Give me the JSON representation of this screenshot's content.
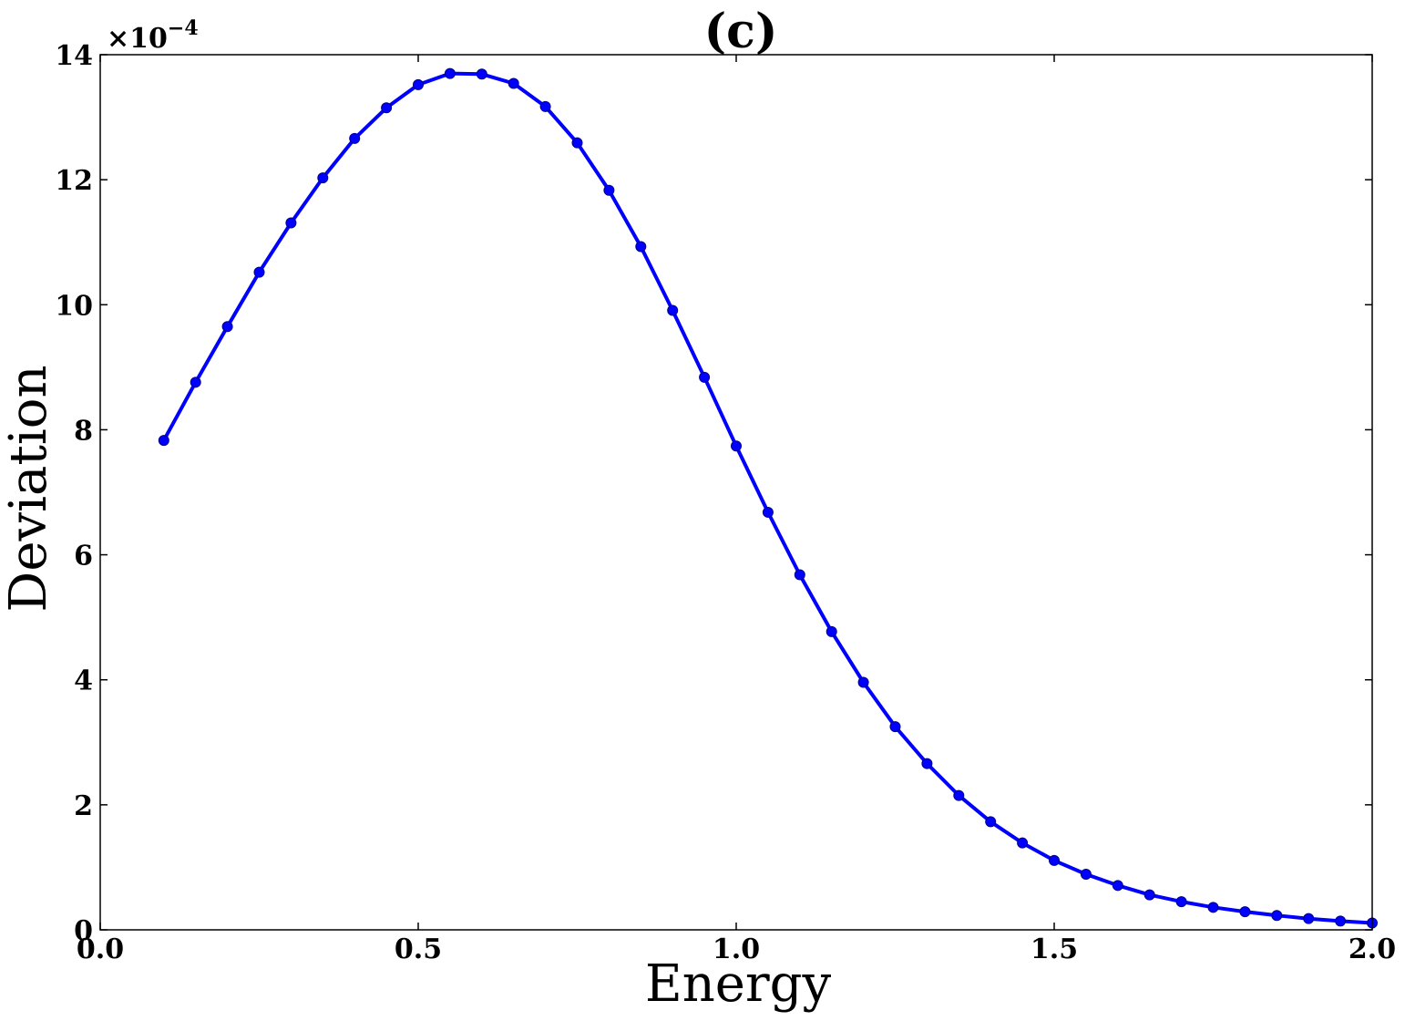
{
  "chart_data": {
    "type": "line",
    "title": "(c)",
    "xlabel": "Energy",
    "ylabel": "Deviation",
    "xlim": [
      0.0,
      2.0
    ],
    "ylim": [
      0,
      14
    ],
    "y_scale_multiplier": "×10",
    "y_scale_exponent": "−4",
    "x_ticks": [
      "0.0",
      "0.5",
      "1.0",
      "1.5",
      "2.0"
    ],
    "x_tick_values": [
      0.0,
      0.5,
      1.0,
      1.5,
      2.0
    ],
    "y_ticks": [
      "0",
      "2",
      "4",
      "6",
      "8",
      "10",
      "12",
      "14"
    ],
    "y_tick_values": [
      0,
      2,
      4,
      6,
      8,
      10,
      12,
      14
    ],
    "grid": false,
    "marker": "circle",
    "color": "#0000ff",
    "series": [
      {
        "x": [
          0.1,
          0.15,
          0.2,
          0.25,
          0.3,
          0.35,
          0.4,
          0.45,
          0.5,
          0.55,
          0.6,
          0.65,
          0.7,
          0.75,
          0.8,
          0.85,
          0.9,
          0.95,
          1.0,
          1.05,
          1.1,
          1.15,
          1.2,
          1.25,
          1.3,
          1.35,
          1.4,
          1.45,
          1.5,
          1.55,
          1.6,
          1.65,
          1.7,
          1.75,
          1.8,
          1.85,
          1.9,
          1.95,
          2.0
        ],
        "y": [
          7.83,
          8.76,
          9.65,
          10.52,
          11.31,
          12.03,
          12.66,
          13.15,
          13.52,
          13.7,
          13.69,
          13.54,
          13.17,
          12.59,
          11.83,
          10.93,
          9.91,
          8.84,
          7.74,
          6.68,
          5.68,
          4.77,
          3.96,
          3.25,
          2.66,
          2.15,
          1.73,
          1.39,
          1.11,
          0.89,
          0.71,
          0.56,
          0.45,
          0.36,
          0.29,
          0.23,
          0.18,
          0.14,
          0.11
        ]
      }
    ]
  }
}
